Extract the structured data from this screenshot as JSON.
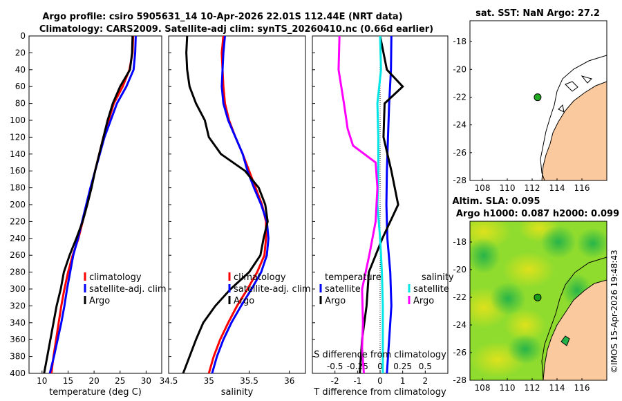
{
  "figure": {
    "title_line1": "Argo profile: csiro 5905631_14 10-Apr-2026 22.01S 112.44E (NRT data)",
    "title_line2": "Climatology: CARS2009. Satellite-adj clim: synTS_20260410.nc (0.66d earlier)",
    "credit": "©IMOS 15-Apr-2026 19:48:43"
  },
  "colors": {
    "climatology": "#ff0000",
    "satellite": "#0000ff",
    "argo": "#000000",
    "sal_diff_satellite": "#00e5e5",
    "sal_diff_argo": "#ff00ff",
    "land": "#fbc99e"
  },
  "chart_data": [
    {
      "type": "line",
      "id": "temperature",
      "xlabel": "temperature (deg C)",
      "ylabel": "",
      "xlim": [
        7.5,
        33
      ],
      "ylim": [
        400,
        0
      ],
      "xticks": [
        "10",
        "15",
        "20",
        "25",
        "30"
      ],
      "xtick_values": [
        10,
        15,
        20,
        25,
        30
      ],
      "yticks": [
        "0",
        "20",
        "40",
        "60",
        "80",
        "100",
        "120",
        "140",
        "160",
        "180",
        "200",
        "220",
        "240",
        "260",
        "280",
        "300",
        "320",
        "340",
        "360",
        "380",
        "400"
      ],
      "ytick_values": [
        0,
        20,
        40,
        60,
        80,
        100,
        120,
        140,
        160,
        180,
        200,
        220,
        240,
        260,
        280,
        300,
        320,
        340,
        360,
        380,
        400
      ],
      "legend": [
        "climatology",
        "satellite-adj. clim",
        "Argo"
      ],
      "series": [
        {
          "name": "climatology",
          "color": "#ff0000",
          "points": [
            [
              27.5,
              0
            ],
            [
              27.4,
              20
            ],
            [
              26.8,
              40
            ],
            [
              25.5,
              60
            ],
            [
              23.8,
              80
            ],
            [
              22.8,
              100
            ],
            [
              21.8,
              120
            ],
            [
              21.0,
              140
            ],
            [
              20.2,
              160
            ],
            [
              19.4,
              180
            ],
            [
              18.6,
              200
            ],
            [
              17.8,
              220
            ],
            [
              17.0,
              240
            ],
            [
              15.9,
              260
            ],
            [
              15.0,
              280
            ],
            [
              14.3,
              300
            ],
            [
              13.7,
              320
            ],
            [
              13.2,
              340
            ],
            [
              12.7,
              360
            ],
            [
              12.2,
              380
            ],
            [
              11.8,
              400
            ]
          ]
        },
        {
          "name": "satellite-adj. clim",
          "color": "#0000ff",
          "points": [
            [
              28.0,
              0
            ],
            [
              27.9,
              20
            ],
            [
              27.6,
              40
            ],
            [
              26.2,
              60
            ],
            [
              24.4,
              80
            ],
            [
              23.2,
              100
            ],
            [
              22.0,
              120
            ],
            [
              21.1,
              140
            ],
            [
              20.2,
              160
            ],
            [
              19.3,
              180
            ],
            [
              18.5,
              200
            ],
            [
              17.7,
              220
            ],
            [
              16.9,
              240
            ],
            [
              16.0,
              260
            ],
            [
              15.4,
              280
            ],
            [
              14.8,
              300
            ],
            [
              14.3,
              320
            ],
            [
              13.7,
              340
            ],
            [
              13.0,
              360
            ],
            [
              12.3,
              380
            ],
            [
              11.5,
              400
            ]
          ]
        },
        {
          "name": "Argo",
          "color": "#000000",
          "points": [
            [
              27.4,
              0
            ],
            [
              27.3,
              20
            ],
            [
              26.9,
              40
            ],
            [
              25.0,
              60
            ],
            [
              23.6,
              80
            ],
            [
              22.6,
              100
            ],
            [
              21.8,
              120
            ],
            [
              21.0,
              140
            ],
            [
              20.2,
              160
            ],
            [
              19.5,
              180
            ],
            [
              18.7,
              200
            ],
            [
              17.8,
              220
            ],
            [
              16.6,
              240
            ],
            [
              15.3,
              260
            ],
            [
              14.2,
              280
            ],
            [
              13.6,
              300
            ],
            [
              12.8,
              320
            ],
            [
              12.2,
              340
            ],
            [
              11.6,
              360
            ],
            [
              11.0,
              380
            ],
            [
              10.4,
              400
            ]
          ]
        }
      ]
    },
    {
      "type": "line",
      "id": "salinity",
      "xlabel": "salinity",
      "xlim": [
        34.5,
        36.2
      ],
      "ylim": [
        400,
        0
      ],
      "xticks": [
        "34.5",
        "35",
        "35.5",
        "36"
      ],
      "xtick_values": [
        34.5,
        35.0,
        35.5,
        36.0
      ],
      "legend": [
        "climatology",
        "satellite-adj. clim",
        "Argo"
      ],
      "series": [
        {
          "name": "climatology",
          "color": "#ff0000",
          "points": [
            [
              35.18,
              0
            ],
            [
              35.16,
              20
            ],
            [
              35.17,
              40
            ],
            [
              35.18,
              60
            ],
            [
              35.2,
              80
            ],
            [
              35.25,
              100
            ],
            [
              35.33,
              120
            ],
            [
              35.42,
              140
            ],
            [
              35.5,
              160
            ],
            [
              35.58,
              180
            ],
            [
              35.66,
              200
            ],
            [
              35.71,
              220
            ],
            [
              35.71,
              240
            ],
            [
              35.69,
              260
            ],
            [
              35.6,
              280
            ],
            [
              35.48,
              300
            ],
            [
              35.35,
              320
            ],
            [
              35.24,
              340
            ],
            [
              35.14,
              360
            ],
            [
              35.06,
              380
            ],
            [
              35.0,
              400
            ]
          ]
        },
        {
          "name": "satellite-adj. clim",
          "color": "#0000ff",
          "points": [
            [
              35.2,
              0
            ],
            [
              35.18,
              20
            ],
            [
              35.17,
              40
            ],
            [
              35.16,
              60
            ],
            [
              35.18,
              80
            ],
            [
              35.24,
              100
            ],
            [
              35.33,
              120
            ],
            [
              35.42,
              140
            ],
            [
              35.48,
              160
            ],
            [
              35.56,
              180
            ],
            [
              35.65,
              200
            ],
            [
              35.72,
              220
            ],
            [
              35.74,
              240
            ],
            [
              35.72,
              260
            ],
            [
              35.65,
              280
            ],
            [
              35.53,
              300
            ],
            [
              35.4,
              320
            ],
            [
              35.28,
              340
            ],
            [
              35.18,
              360
            ],
            [
              35.1,
              380
            ],
            [
              35.04,
              400
            ]
          ]
        },
        {
          "name": "Argo",
          "color": "#000000",
          "points": [
            [
              34.73,
              0
            ],
            [
              34.72,
              20
            ],
            [
              34.73,
              40
            ],
            [
              34.76,
              60
            ],
            [
              34.84,
              80
            ],
            [
              34.95,
              100
            ],
            [
              35.0,
              120
            ],
            [
              35.15,
              140
            ],
            [
              35.45,
              160
            ],
            [
              35.62,
              180
            ],
            [
              35.7,
              200
            ],
            [
              35.73,
              220
            ],
            [
              35.68,
              240
            ],
            [
              35.64,
              260
            ],
            [
              35.5,
              280
            ],
            [
              35.27,
              300
            ],
            [
              35.08,
              320
            ],
            [
              34.93,
              340
            ],
            [
              34.84,
              360
            ],
            [
              34.76,
              380
            ],
            [
              34.68,
              400
            ]
          ]
        }
      ]
    },
    {
      "type": "line",
      "id": "difference",
      "xlabel": "T difference from climatology",
      "secondary_xlabel": "S difference from climatology",
      "xlim": [
        -3,
        3
      ],
      "ylim": [
        400,
        0
      ],
      "xticks": [
        "-2",
        "-1",
        "0",
        "1",
        "2"
      ],
      "xtick_values": [
        -2,
        -1,
        0,
        1,
        2
      ],
      "secondary_xticks": [
        "-0.5",
        "-0.25",
        "0",
        "0.25",
        "0.5"
      ],
      "secondary_xtick_values": [
        -0.5,
        -0.25,
        0,
        0.25,
        0.5
      ],
      "legend_temperature": [
        "temperature",
        "satellite",
        "Argo"
      ],
      "legend_salinity": [
        "salinity",
        "satellite",
        "Argo"
      ],
      "series": [
        {
          "name": "T satellite",
          "color": "#0000ff",
          "points": [
            [
              0.5,
              0
            ],
            [
              0.48,
              40
            ],
            [
              0.4,
              80
            ],
            [
              0.35,
              120
            ],
            [
              0.3,
              160
            ],
            [
              0.28,
              200
            ],
            [
              0.32,
              240
            ],
            [
              0.45,
              280
            ],
            [
              0.5,
              320
            ],
            [
              0.4,
              360
            ],
            [
              0.3,
              400
            ]
          ]
        },
        {
          "name": "T Argo",
          "color": "#000000",
          "points": [
            [
              0.0,
              0
            ],
            [
              0.3,
              40
            ],
            [
              1.0,
              60
            ],
            [
              0.2,
              80
            ],
            [
              0.15,
              120
            ],
            [
              0.5,
              160
            ],
            [
              0.8,
              200
            ],
            [
              0.1,
              240
            ],
            [
              -0.5,
              280
            ],
            [
              -0.6,
              320
            ],
            [
              -0.8,
              360
            ],
            [
              -0.9,
              400
            ]
          ]
        },
        {
          "name": "S satellite",
          "color": "#00e5e5",
          "points": [
            [
              0.0,
              0
            ],
            [
              0.01,
              40
            ],
            [
              -0.03,
              80
            ],
            [
              -0.02,
              120
            ],
            [
              -0.02,
              160
            ],
            [
              -0.03,
              200
            ],
            [
              0.0,
              240
            ],
            [
              0.02,
              280
            ],
            [
              0.03,
              320
            ],
            [
              0.03,
              360
            ],
            [
              0.03,
              400
            ]
          ]
        },
        {
          "name": "S Argo",
          "color": "#ff00ff",
          "points": [
            [
              -0.45,
              0
            ],
            [
              -0.46,
              40
            ],
            [
              -0.4,
              80
            ],
            [
              -0.36,
              110
            ],
            [
              -0.3,
              130
            ],
            [
              -0.05,
              150
            ],
            [
              -0.03,
              180
            ],
            [
              -0.05,
              220
            ],
            [
              -0.12,
              260
            ],
            [
              -0.2,
              300
            ],
            [
              -0.19,
              340
            ],
            [
              -0.2,
              370
            ],
            [
              -0.18,
              400
            ]
          ]
        }
      ]
    },
    {
      "type": "map",
      "id": "sst-map",
      "title": "sat. SST: NaN Argo: 27.2",
      "xlim": [
        107,
        118
      ],
      "ylim": [
        -28,
        -16.5
      ],
      "xticks": [
        "108",
        "110",
        "112",
        "114",
        "116"
      ],
      "xtick_values": [
        108,
        110,
        112,
        114,
        116
      ],
      "yticks": [
        "-18",
        "-20",
        "-22",
        "-24",
        "-26",
        "-28"
      ],
      "ytick_values": [
        -18,
        -20,
        -22,
        -24,
        -26,
        -28
      ],
      "marker": {
        "lon": 112.44,
        "lat": -22.01,
        "color": "#22aa22"
      }
    },
    {
      "type": "map",
      "id": "sla-map",
      "title_line1": "Altim. SLA: 0.095",
      "title_line2": "Argo h1000: 0.087 h2000: 0.099",
      "xlim": [
        107,
        118
      ],
      "ylim": [
        -28,
        -16.5
      ],
      "xticks": [
        "108",
        "110",
        "112",
        "114",
        "116"
      ],
      "xtick_values": [
        108,
        110,
        112,
        114,
        116
      ],
      "yticks": [
        "-18",
        "-20",
        "-22",
        "-24",
        "-26",
        "-28"
      ],
      "ytick_values": [
        -18,
        -20,
        -22,
        -24,
        -26,
        -28
      ],
      "marker": {
        "lon": 112.44,
        "lat": -22.01,
        "color": "#1a9e1a"
      }
    }
  ]
}
